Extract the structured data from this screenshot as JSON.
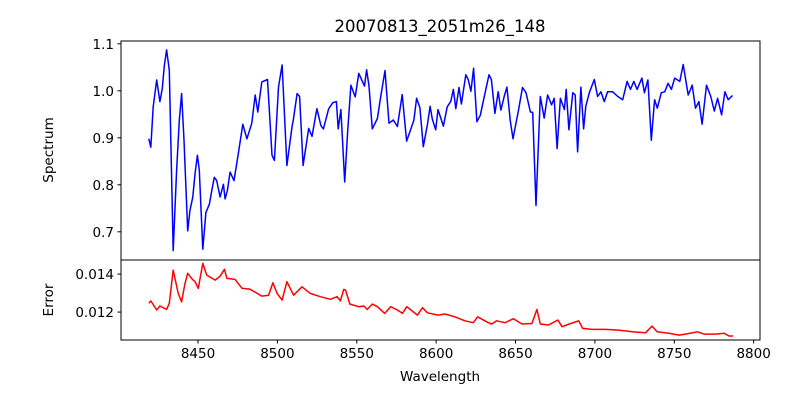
{
  "chart_data": [
    {
      "type": "line",
      "title": "20070813_2051m26_148",
      "xlabel": "",
      "ylabel": "Spectrum",
      "xlim": [
        8401.5,
        8804
      ],
      "ylim": [
        0.64,
        1.106
      ],
      "yticks": [
        "0.7",
        "0.8",
        "0.9",
        "1.0",
        "1.1"
      ],
      "ytick_values": [
        0.7,
        0.8,
        0.9,
        1.0,
        1.1
      ],
      "grid": false,
      "series": [
        {
          "name": "Spectrum",
          "color": "#0000ff",
          "x": [
            8419,
            8420.3,
            8421.8,
            8424,
            8426,
            8427.5,
            8428.7,
            8430.2,
            8431.9,
            8434.4,
            8436.5,
            8438.2,
            8439.7,
            8441.2,
            8443.5,
            8444.9,
            8446.7,
            8448.1,
            8449.6,
            8450.8,
            8453,
            8455,
            8457.2,
            8458.7,
            8460.3,
            8461.8,
            8463.9,
            8466,
            8467.1,
            8468.5,
            8470.2,
            8472.7,
            8475.4,
            8478.2,
            8480.8,
            8483.9,
            8486,
            8487.7,
            8490.2,
            8493.8,
            8496.6,
            8498.1,
            8500.7,
            8503,
            8506,
            8509.2,
            8510,
            8512.4,
            8514,
            8516.2,
            8519.7,
            8521.8,
            8524.9,
            8527.4,
            8529,
            8532.3,
            8535,
            8537.2,
            8538.3,
            8540,
            8542.4,
            8544.3,
            8546.3,
            8549,
            8551.3,
            8554.9,
            8556.2,
            8557.7,
            8559.8,
            8563,
            8565,
            8567.8,
            8570.3,
            8573,
            8575.6,
            8578.6,
            8581.4,
            8583.9,
            8586,
            8587.7,
            8589.8,
            8591.9,
            8594.5,
            8596.2,
            8597.6,
            8599.7,
            8601.2,
            8604.6,
            8607,
            8609.2,
            8610.9,
            8612.4,
            8614.4,
            8615.9,
            8618.7,
            8620.2,
            8621.9,
            8623.6,
            8625.7,
            8627.8,
            8630.1,
            8633.3,
            8634.8,
            8637,
            8639.1,
            8640.8,
            8642.9,
            8644.6,
            8646.7,
            8648.4,
            8651.9,
            8654.4,
            8656.6,
            8659.4,
            8660.8,
            8662.9,
            8665.6,
            8668.1,
            8670.2,
            8672.7,
            8674.4,
            8676.2,
            8678.3,
            8680.8,
            8681.9,
            8683.6,
            8686.1,
            8687.6,
            8689.1,
            8691.2,
            8692.9,
            8694.3,
            8696.5,
            8699.6,
            8701.7,
            8703.8,
            8705.9,
            8708,
            8711.2,
            8714.4,
            8717.5,
            8720.3,
            8722.4,
            8724.5,
            8726.6,
            8729.6,
            8731.2,
            8733.4,
            8735.5,
            8737.6,
            8739.3,
            8741.8,
            8744,
            8746.1,
            8748.2,
            8750.3,
            8753.5,
            8755.6,
            8758.8,
            8761.3,
            8763.4,
            8765.5,
            8767.5,
            8770.3,
            8773,
            8775.2,
            8777.3,
            8779.8,
            8781.9,
            8784,
            8786.7
          ],
          "y": [
            0.898,
            0.88,
            0.966,
            1.023,
            0.977,
            1.005,
            1.051,
            1.087,
            1.044,
            0.66,
            0.83,
            0.937,
            0.994,
            0.895,
            0.702,
            0.745,
            0.774,
            0.823,
            0.863,
            0.831,
            0.663,
            0.741,
            0.759,
            0.788,
            0.816,
            0.809,
            0.774,
            0.801,
            0.77,
            0.788,
            0.827,
            0.809,
            0.866,
            0.929,
            0.898,
            0.931,
            0.991,
            0.955,
            1.019,
            1.024,
            0.863,
            0.852,
            1.008,
            1.055,
            0.841,
            0.923,
            0.938,
            0.994,
            0.988,
            0.841,
            0.92,
            0.903,
            0.962,
            0.926,
            0.919,
            0.962,
            0.975,
            0.977,
            0.919,
            0.96,
            0.806,
            0.915,
            1.012,
            0.987,
            1.037,
            1.01,
            1.045,
            1.01,
            0.919,
            0.941,
            0.986,
            1.043,
            0.931,
            0.938,
            0.924,
            0.992,
            0.893,
            0.917,
            0.938,
            0.984,
            0.964,
            0.881,
            0.928,
            0.967,
            0.94,
            0.917,
            0.96,
            0.925,
            0.966,
            0.977,
            1.003,
            0.962,
            1.007,
            0.972,
            1.034,
            1.024,
            0.999,
            1.048,
            0.934,
            0.948,
            0.984,
            1.034,
            1.024,
            0.952,
            0.998,
            0.959,
            0.988,
            1.008,
            0.936,
            0.898,
            0.959,
            1.007,
            0.996,
            0.955,
            0.954,
            0.756,
            0.988,
            0.942,
            0.991,
            0.97,
            0.984,
            0.877,
            0.984,
            0.96,
            1.003,
            0.917,
            0.996,
            0.991,
            0.87,
            1.008,
            0.919,
            0.967,
            0.996,
            1.024,
            0.988,
            0.998,
            0.977,
            0.998,
            0.998,
            0.988,
            0.981,
            1.02,
            1.003,
            1.02,
            1.003,
            1.027,
            0.996,
            1.023,
            0.895,
            0.981,
            0.963,
            0.996,
            0.998,
            1.016,
            1.003,
            1.027,
            1.02,
            1.056,
            0.991,
            1.012,
            0.963,
            0.977,
            0.929,
            1.012,
            0.988,
            0.957,
            0.984,
            0.949,
            0.998,
            0.981,
            0.99
          ]
        }
      ]
    },
    {
      "type": "line",
      "xlabel": "Wavelength",
      "ylabel": "Error",
      "xlim": [
        8401.5,
        8804
      ],
      "ylim": [
        0.01053,
        0.01474
      ],
      "xticks": [
        "8450",
        "8500",
        "8550",
        "8600",
        "8650",
        "8700",
        "8750",
        "8800"
      ],
      "xtick_values": [
        8450,
        8500,
        8550,
        8600,
        8650,
        8700,
        8750,
        8800
      ],
      "yticks": [
        "0.012",
        "0.014"
      ],
      "ytick_values": [
        0.012,
        0.014
      ],
      "grid": false,
      "series": [
        {
          "name": "Error",
          "color": "#ff0000",
          "x": [
            8419,
            8420.3,
            8424,
            8426,
            8430.2,
            8431.9,
            8434.4,
            8437.5,
            8439.7,
            8441.8,
            8443.5,
            8446,
            8448.1,
            8450.2,
            8453,
            8455.5,
            8460.8,
            8463.9,
            8466.7,
            8468.2,
            8473.4,
            8477.7,
            8482.9,
            8490.2,
            8494.5,
            8497.2,
            8499.8,
            8503,
            8506,
            8510.2,
            8515.5,
            8520.7,
            8527.1,
            8533.4,
            8537.6,
            8539.7,
            8541.8,
            8542.9,
            8545.7,
            8551.3,
            8554.5,
            8556.6,
            8559.8,
            8563,
            8567.6,
            8571.4,
            8575.6,
            8578.8,
            8581.5,
            8588.2,
            8591.4,
            8594.5,
            8601.2,
            8605.5,
            8611.8,
            8618.1,
            8623.4,
            8626.1,
            8631.8,
            8635,
            8638.1,
            8643.4,
            8648.7,
            8654,
            8660.3,
            8663.5,
            8665.6,
            8670.8,
            8676.7,
            8679.3,
            8683.9,
            8689.8,
            8692.3,
            8698.2,
            8706.6,
            8715,
            8723.4,
            8731.9,
            8736,
            8739.2,
            8746.6,
            8752.9,
            8757.1,
            8764.5,
            8768.7,
            8776.1,
            8781.4,
            8784.5,
            8787
          ],
          "y": [
            0.01246,
            0.01259,
            0.01211,
            0.01232,
            0.01214,
            0.01246,
            0.01421,
            0.01298,
            0.01254,
            0.01351,
            0.01404,
            0.01377,
            0.0136,
            0.01325,
            0.01456,
            0.01395,
            0.01368,
            0.01389,
            0.01425,
            0.01377,
            0.01372,
            0.01325,
            0.0132,
            0.01284,
            0.01289,
            0.01354,
            0.01298,
            0.01263,
            0.0136,
            0.01289,
            0.01333,
            0.01298,
            0.01281,
            0.01267,
            0.01281,
            0.01259,
            0.01319,
            0.01316,
            0.01242,
            0.01228,
            0.01232,
            0.01214,
            0.01242,
            0.01228,
            0.01193,
            0.01228,
            0.01211,
            0.01193,
            0.01228,
            0.01184,
            0.01223,
            0.01196,
            0.01184,
            0.0119,
            0.01175,
            0.01154,
            0.01144,
            0.01175,
            0.01149,
            0.01137,
            0.01154,
            0.01144,
            0.01165,
            0.01137,
            0.0114,
            0.01214,
            0.01137,
            0.01132,
            0.01158,
            0.01123,
            0.01137,
            0.01154,
            0.01114,
            0.01109,
            0.01109,
            0.01105,
            0.01096,
            0.01091,
            0.01126,
            0.01096,
            0.01088,
            0.01079,
            0.01084,
            0.01096,
            0.01084,
            0.01084,
            0.01088,
            0.01074,
            0.01074
          ]
        }
      ]
    }
  ]
}
